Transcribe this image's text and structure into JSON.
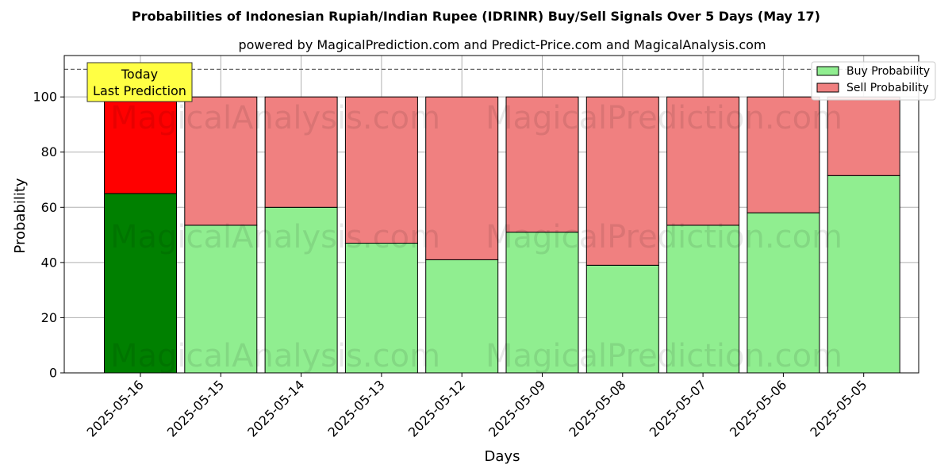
{
  "chart_data": {
    "type": "bar",
    "stacked": true,
    "title": "Probabilities of Indonesian Rupiah/Indian Rupee (IDRINR) Buy/Sell Signals Over 5 Days (May 17)",
    "subtitle": "powered by MagicalPrediction.com and Predict-Price.com and MagicalAnalysis.com",
    "xlabel": "Days",
    "ylabel": "Probability",
    "ylim": [
      0,
      115
    ],
    "yticks": [
      0,
      20,
      40,
      60,
      80,
      100
    ],
    "grid": true,
    "legend_position": "top-right",
    "reference_line": 110,
    "categories": [
      "2025-05-16",
      "2025-05-15",
      "2025-05-14",
      "2025-05-13",
      "2025-05-12",
      "2025-05-09",
      "2025-05-08",
      "2025-05-07",
      "2025-05-06",
      "2025-05-05"
    ],
    "series": [
      {
        "name": "Buy Probability",
        "color": "#90ee90",
        "highlight_color": "#008000",
        "values": [
          65,
          53.5,
          60,
          47,
          41,
          51,
          39,
          53.5,
          58,
          71.5
        ]
      },
      {
        "name": "Sell Probability",
        "color": "#f08080",
        "highlight_color": "#ff0000",
        "values": [
          35,
          46.5,
          40,
          53,
          59,
          49,
          61,
          46.5,
          42,
          28.5
        ]
      }
    ],
    "highlight_index": 0,
    "annotation": {
      "lines": [
        "Today",
        "Last Prediction"
      ],
      "background": "#ffff44"
    },
    "watermarks": [
      "MagicalAnalysis.com",
      "MagicalPrediction.com"
    ]
  }
}
